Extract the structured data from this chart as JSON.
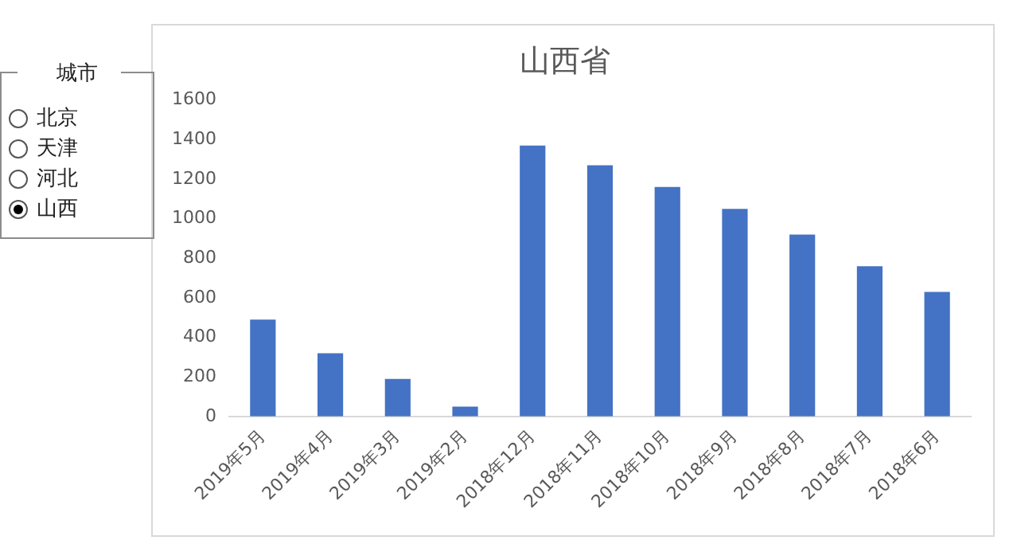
{
  "chart_data": {
    "type": "bar",
    "title": "山西省",
    "categories": [
      "2019年5月",
      "2019年4月",
      "2019年3月",
      "2019年2月",
      "2018年12月",
      "2018年11月",
      "2018年10月",
      "2018年9月",
      "2018年8月",
      "2018年7月",
      "2018年6月"
    ],
    "values": [
      490,
      320,
      190,
      50,
      1370,
      1270,
      1160,
      1050,
      920,
      760,
      630
    ],
    "color": "#4472c4",
    "ylim": [
      0,
      1600
    ],
    "yticks": [
      0,
      200,
      400,
      600,
      800,
      1000,
      1200,
      1400,
      1600
    ],
    "annotations": [
      "城市",
      "北京",
      "天津",
      "河北",
      "山西"
    ]
  }
}
